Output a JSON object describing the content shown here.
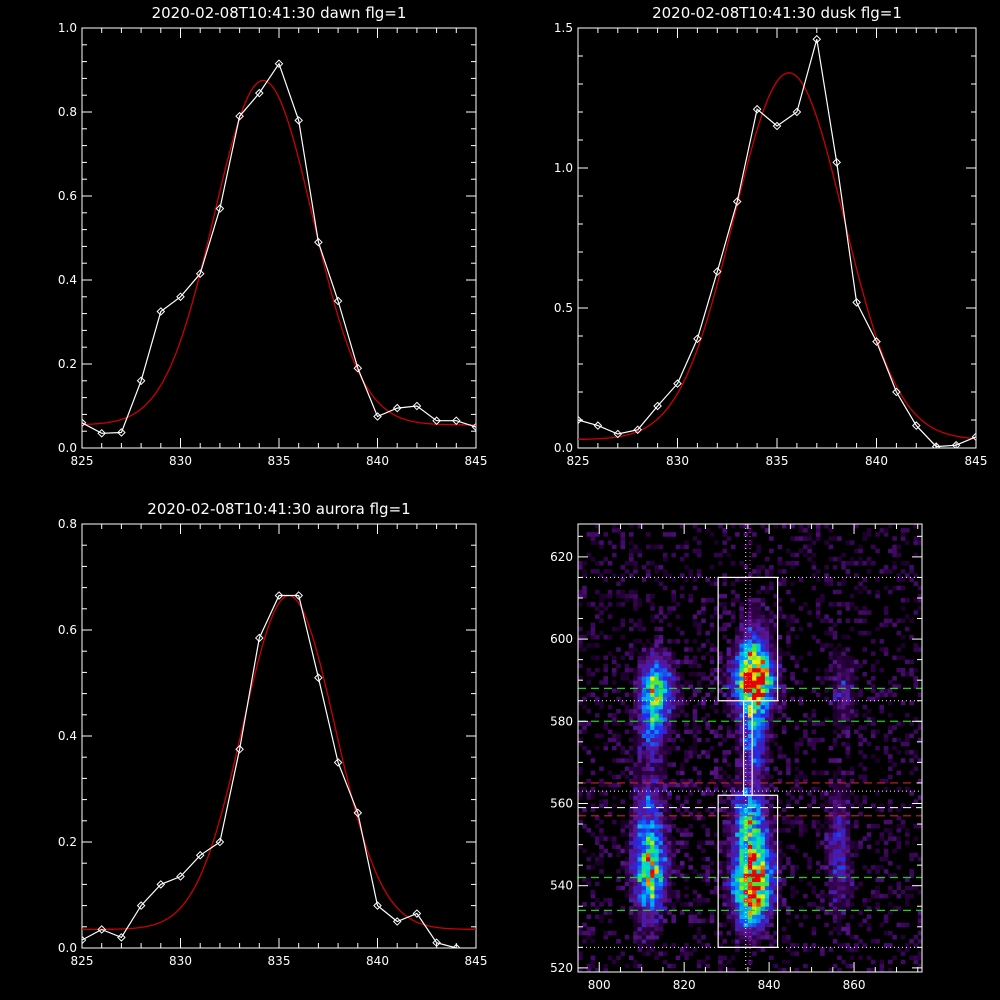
{
  "colors": {
    "background": "#000000",
    "axis": "#ffffff",
    "data_line": "#ffffff",
    "fit_line": "#cc0000",
    "green_dash": "#22cc22",
    "red_dash": "#cc2222",
    "magenta_dot": "#ff33ff"
  },
  "chart_data": [
    {
      "type": "line",
      "title": "2020-02-08T10:41:30 dawn flg=1",
      "xlim": [
        825,
        845
      ],
      "ylim": [
        0,
        1.0
      ],
      "xticks": [
        825,
        830,
        835,
        840,
        845
      ],
      "yticks": [
        0.0,
        0.2,
        0.4,
        0.6,
        0.8,
        1.0
      ],
      "ytick_labels": [
        "0.0",
        "0.2",
        "0.4",
        "0.6",
        "0.8",
        "1.0"
      ],
      "series": [
        {
          "style": "diamond-line",
          "x": [
            825,
            826,
            827,
            828,
            829,
            830,
            831,
            832,
            833,
            834,
            835,
            836,
            837,
            838,
            839,
            840,
            841,
            842,
            843,
            844,
            845
          ],
          "y": [
            0.06,
            0.035,
            0.037,
            0.16,
            0.325,
            0.36,
            0.415,
            0.57,
            0.79,
            0.845,
            0.915,
            0.78,
            0.49,
            0.35,
            0.19,
            0.075,
            0.095,
            0.1,
            0.065,
            0.065,
            0.05
          ]
        },
        {
          "style": "fit",
          "kind": "gaussian",
          "amplitude": 0.82,
          "center": 834.2,
          "sigma": 2.5,
          "baseline": 0.055
        }
      ]
    },
    {
      "type": "line",
      "title": "2020-02-08T10:41:30 dusk flg=1",
      "xlim": [
        825,
        845
      ],
      "ylim": [
        0,
        1.5
      ],
      "xticks": [
        825,
        830,
        835,
        840,
        845
      ],
      "yticks": [
        0.0,
        0.5,
        1.0,
        1.5
      ],
      "ytick_labels": [
        "0.0",
        "0.5",
        "1.0",
        "1.5"
      ],
      "series": [
        {
          "style": "diamond-line",
          "x": [
            825,
            826,
            827,
            828,
            829,
            830,
            831,
            832,
            833,
            834,
            835,
            836,
            837,
            838,
            839,
            840,
            841,
            842,
            843,
            844,
            845
          ],
          "y": [
            0.1,
            0.08,
            0.05,
            0.065,
            0.15,
            0.23,
            0.39,
            0.63,
            0.88,
            1.21,
            1.15,
            1.2,
            1.46,
            1.02,
            0.52,
            0.38,
            0.2,
            0.08,
            0.005,
            0.01,
            0.04
          ]
        },
        {
          "style": "fit",
          "kind": "gaussian",
          "amplitude": 1.31,
          "center": 835.6,
          "sigma": 2.75,
          "baseline": 0.03
        }
      ]
    },
    {
      "type": "line",
      "title": "2020-02-08T10:41:30 aurora flg=1",
      "xlim": [
        825,
        845
      ],
      "ylim": [
        0,
        0.8
      ],
      "xticks": [
        825,
        830,
        835,
        840,
        845
      ],
      "yticks": [
        0.0,
        0.2,
        0.4,
        0.6,
        0.8
      ],
      "ytick_labels": [
        "0.0",
        "0.2",
        "0.4",
        "0.6",
        "0.8"
      ],
      "series": [
        {
          "style": "diamond-line",
          "x": [
            825,
            826,
            827,
            828,
            829,
            830,
            831,
            832,
            833,
            834,
            835,
            836,
            837,
            838,
            839,
            840,
            841,
            842,
            843,
            844
          ],
          "y": [
            0.015,
            0.035,
            0.02,
            0.08,
            0.12,
            0.135,
            0.175,
            0.2,
            0.375,
            0.585,
            0.665,
            0.665,
            0.51,
            0.35,
            0.255,
            0.08,
            0.05,
            0.065,
            0.01,
            0.0
          ]
        },
        {
          "style": "fit",
          "kind": "gaussian",
          "amplitude": 0.63,
          "center": 835.5,
          "sigma": 2.35,
          "baseline": 0.035
        }
      ]
    },
    {
      "type": "heatmap",
      "xlim": [
        795,
        876
      ],
      "ylim": [
        519,
        628
      ],
      "xticks": [
        800,
        820,
        840,
        860
      ],
      "yticks": [
        520,
        540,
        560,
        580,
        600,
        620
      ],
      "boxes": [
        {
          "x0": 828,
          "x1": 842,
          "y0": 585,
          "y1": 615
        },
        {
          "x0": 828,
          "x1": 842,
          "y0": 525,
          "y1": 562
        }
      ],
      "inner_strip": {
        "x0": 834,
        "x1": 836,
        "y0": 562,
        "y1": 585
      },
      "vertical_dotted": [
        834.5
      ],
      "vertical_dotted_magenta": [
        835.5
      ],
      "horizontal_dotted": [
        615,
        585,
        563,
        525
      ],
      "horizontal_dashed_green": [
        588,
        580,
        542,
        534
      ],
      "horizontal_dashed_red": [
        565,
        557
      ],
      "horizontal_dashed_white": [
        559
      ],
      "blobs": [
        {
          "x": 813,
          "y": 588,
          "sx": 2.5,
          "sy": 5,
          "a": 0.55
        },
        {
          "x": 812,
          "y": 580,
          "sx": 2.2,
          "sy": 6,
          "a": 0.35
        },
        {
          "x": 811,
          "y": 548,
          "sx": 2.5,
          "sy": 12,
          "a": 0.45
        },
        {
          "x": 812,
          "y": 542,
          "sx": 2.5,
          "sy": 5,
          "a": 0.35
        },
        {
          "x": 836,
          "y": 590,
          "sx": 3.0,
          "sy": 5,
          "a": 0.95
        },
        {
          "x": 836,
          "y": 578,
          "sx": 2.2,
          "sy": 8,
          "a": 0.4
        },
        {
          "x": 835,
          "y": 555,
          "sx": 2.5,
          "sy": 6,
          "a": 0.55
        },
        {
          "x": 836,
          "y": 542,
          "sx": 3.0,
          "sy": 6,
          "a": 0.8
        },
        {
          "x": 835,
          "y": 535,
          "sx": 2.5,
          "sy": 5,
          "a": 0.45
        },
        {
          "x": 836,
          "y": 600,
          "sx": 2.5,
          "sy": 6,
          "a": 0.2
        },
        {
          "x": 857,
          "y": 587,
          "sx": 2.0,
          "sy": 6,
          "a": 0.2
        },
        {
          "x": 856,
          "y": 548,
          "sx": 2.0,
          "sy": 11,
          "a": 0.25
        },
        {
          "x": 823,
          "y": 570,
          "sx": 6,
          "sy": 25,
          "a": 0.05
        }
      ]
    }
  ]
}
